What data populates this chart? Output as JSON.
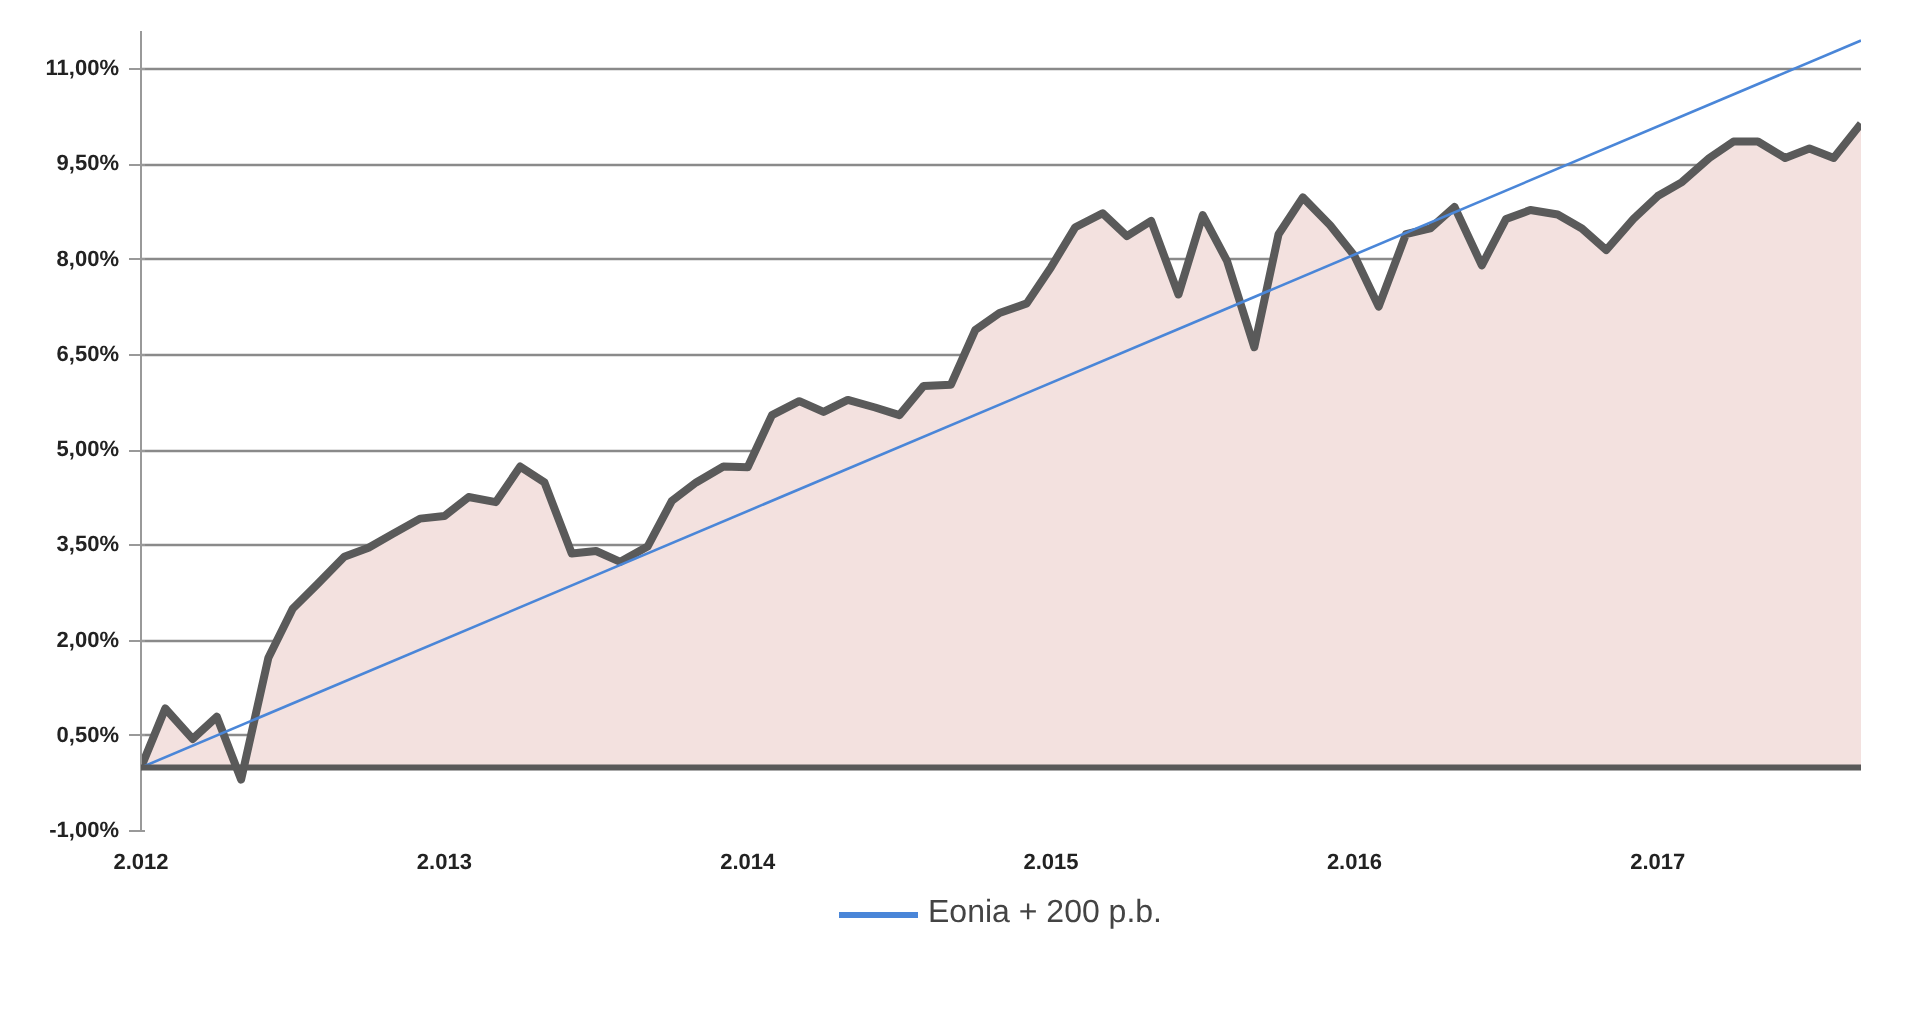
{
  "chart_data": {
    "type": "line",
    "x": [
      2012.0,
      2012.08,
      2012.17,
      2012.25,
      2012.33,
      2012.42,
      2012.5,
      2012.58,
      2012.67,
      2012.75,
      2012.83,
      2012.92,
      2013.0,
      2013.08,
      2013.17,
      2013.25,
      2013.33,
      2013.42,
      2013.5,
      2013.58,
      2013.67,
      2013.75,
      2013.83,
      2013.92,
      2014.0,
      2014.08,
      2014.17,
      2014.25,
      2014.33,
      2014.42,
      2014.5,
      2014.58,
      2014.67,
      2014.75,
      2014.83,
      2014.92,
      2015.0,
      2015.08,
      2015.17,
      2015.25,
      2015.33,
      2015.42,
      2015.5,
      2015.58,
      2015.67,
      2015.75,
      2015.83,
      2015.92,
      2016.0,
      2016.08,
      2016.17,
      2016.25,
      2016.33,
      2016.42,
      2016.5,
      2016.58,
      2016.67,
      2016.75,
      2016.83,
      2016.92,
      2017.0,
      2017.08,
      2017.17,
      2017.25,
      2017.33,
      2017.42,
      2017.5,
      2017.58,
      2017.67
    ],
    "series": [
      {
        "type": "area",
        "color": "#5a5a5a",
        "values": [
          0.0,
          0.93,
          0.45,
          0.8,
          -0.19,
          1.73,
          2.5,
          2.88,
          3.32,
          3.46,
          3.68,
          3.92,
          3.96,
          4.26,
          4.18,
          4.74,
          4.49,
          3.37,
          3.41,
          3.24,
          3.48,
          4.2,
          4.49,
          4.74,
          4.73,
          5.55,
          5.77,
          5.6,
          5.79,
          5.67,
          5.55,
          6.01,
          6.03,
          6.89,
          7.16,
          7.31,
          7.88,
          8.51,
          8.73,
          8.37,
          8.61,
          7.45,
          8.7,
          7.98,
          6.62,
          8.4,
          8.98,
          8.54,
          8.06,
          7.26,
          8.4,
          8.49,
          8.83,
          7.91,
          8.64,
          8.78,
          8.71,
          8.49,
          8.15,
          8.64,
          9.0,
          9.22,
          9.6,
          9.86,
          9.86,
          9.6,
          9.75,
          9.6,
          10.14
        ]
      },
      {
        "name": "Eonia + 200 p.b.",
        "color": "#4a86d8",
        "x": [
          2012.0,
          2017.67
        ],
        "values": [
          0.0,
          11.45
        ]
      }
    ],
    "xlim": [
      2012.0,
      2017.67
    ],
    "xticks": [
      {
        "value": 2012,
        "label": "2.012"
      },
      {
        "value": 2013,
        "label": "2.013"
      },
      {
        "value": 2014,
        "label": "2.014"
      },
      {
        "value": 2015,
        "label": "2.015"
      },
      {
        "value": 2016,
        "label": "2.016"
      },
      {
        "value": 2017,
        "label": "2.017"
      }
    ],
    "ylim": [
      -1.0,
      11.6
    ],
    "yticks": [
      {
        "value": -1.0,
        "label": "-1,00%"
      },
      {
        "value": 0.5,
        "label": "0,50%"
      },
      {
        "value": 2.0,
        "label": "2,00%"
      },
      {
        "value": 3.5,
        "label": "3,50%"
      },
      {
        "value": 5.0,
        "label": "5,00%"
      },
      {
        "value": 6.5,
        "label": "6,50%"
      },
      {
        "value": 8.0,
        "label": "8,00%"
      },
      {
        "value": 9.5,
        "label": "9,50%"
      },
      {
        "value": 11.0,
        "label": "11,00%"
      }
    ],
    "grid": "y",
    "legend": "bottom"
  }
}
